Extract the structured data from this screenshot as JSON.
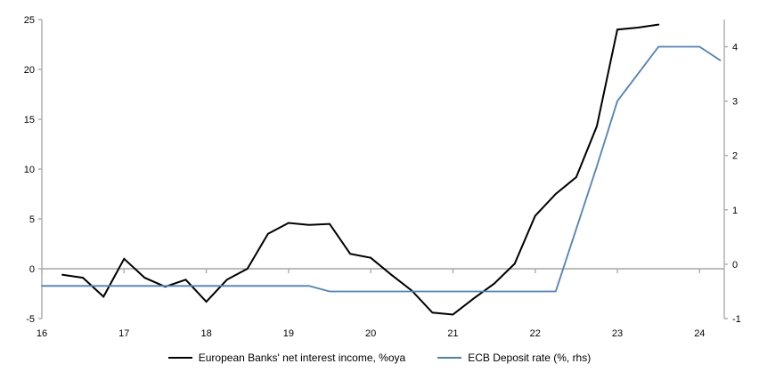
{
  "chart_data": {
    "type": "line",
    "title": "",
    "grid": false,
    "legend_position": "bottom",
    "axis_color": "#A6A6A6",
    "background": "#FFFFFF",
    "x_axis": {
      "label": "",
      "ticks": [
        16,
        17,
        18,
        19,
        20,
        21,
        22,
        23,
        24
      ],
      "tick_labels": [
        "16",
        "17",
        "18",
        "19",
        "20",
        "21",
        "22",
        "23",
        "24"
      ],
      "range": [
        16,
        24.3
      ],
      "tick_position": "on-zero-line",
      "label_position": "bottom"
    },
    "left_axis": {
      "label": "",
      "ticks": [
        25,
        20,
        15,
        10,
        5,
        0,
        -5
      ],
      "range": [
        -5,
        25
      ]
    },
    "right_axis": {
      "label": "",
      "ticks": [
        4,
        3,
        2,
        1,
        0,
        -1
      ],
      "range": [
        -1,
        4.5
      ]
    },
    "series": [
      {
        "name": "European Banks' net interest income, %oya",
        "axis": "left",
        "color": "#000000",
        "width": 2,
        "x": [
          16.25,
          16.5,
          16.75,
          17.0,
          17.25,
          17.5,
          17.75,
          18.0,
          18.25,
          18.5,
          18.75,
          19.0,
          19.25,
          19.5,
          19.75,
          20.0,
          20.25,
          20.5,
          20.75,
          21.0,
          21.25,
          21.5,
          21.75,
          22.0,
          22.25,
          22.5,
          22.75,
          23.0,
          23.25,
          23.5
        ],
        "y": [
          -0.6,
          -0.9,
          -2.8,
          1.0,
          -0.9,
          -1.8,
          -1.1,
          -3.3,
          -1.1,
          0.0,
          3.5,
          4.6,
          4.4,
          4.5,
          1.5,
          1.1,
          -0.6,
          -2.2,
          -4.4,
          -4.6,
          -3.0,
          -1.5,
          0.5,
          5.3,
          7.5,
          9.2,
          14.3,
          24.0,
          24.2,
          24.5
        ]
      },
      {
        "name": "ECB Deposit rate (%, rhs)",
        "axis": "right",
        "color": "#4F81BD",
        "width": 1.8,
        "x": [
          16.0,
          16.25,
          16.5,
          16.75,
          17.0,
          17.25,
          17.5,
          17.75,
          18.0,
          18.25,
          18.5,
          18.75,
          19.0,
          19.25,
          19.5,
          19.75,
          20.0,
          20.25,
          20.5,
          20.75,
          21.0,
          21.25,
          21.5,
          21.75,
          22.0,
          22.25,
          22.5,
          22.75,
          23.0,
          23.25,
          23.5,
          23.75,
          24.0,
          24.25
        ],
        "y": [
          -0.4,
          -0.4,
          -0.4,
          -0.4,
          -0.4,
          -0.4,
          -0.4,
          -0.4,
          -0.4,
          -0.4,
          -0.4,
          -0.4,
          -0.4,
          -0.4,
          -0.5,
          -0.5,
          -0.5,
          -0.5,
          -0.5,
          -0.5,
          -0.5,
          -0.5,
          -0.5,
          -0.5,
          -0.5,
          -0.5,
          0.65,
          1.8,
          3.0,
          3.5,
          4.0,
          4.0,
          4.0,
          3.75
        ]
      }
    ]
  },
  "legend": {
    "items": [
      {
        "label": "European Banks' net interest income, %oya"
      },
      {
        "label": "ECB Deposit rate (%, rhs)"
      }
    ]
  }
}
